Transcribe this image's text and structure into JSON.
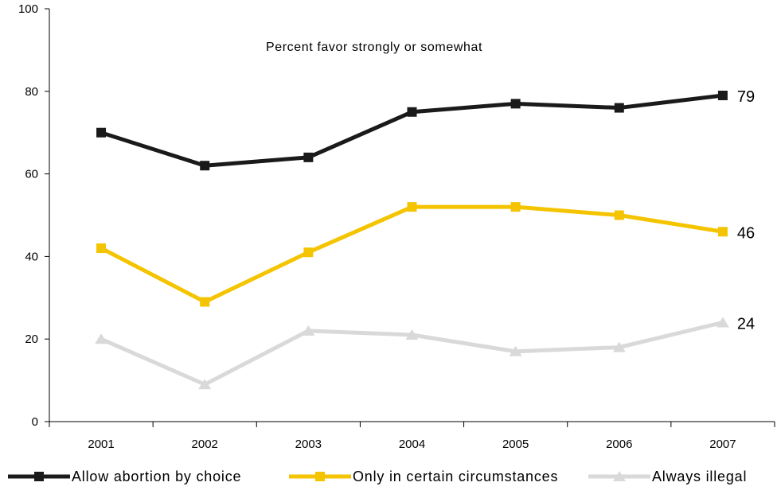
{
  "chart_data": {
    "type": "line",
    "annotation": "Percent favor strongly or somewhat",
    "categories": [
      "2001",
      "2002",
      "2003",
      "2004",
      "2005",
      "2006",
      "2007"
    ],
    "ylim": [
      0,
      100
    ],
    "yticks": [
      "0",
      "20",
      "40",
      "60",
      "80",
      "100"
    ],
    "legend_position": "bottom",
    "series": [
      {
        "name": "Allow abortion by choice",
        "color": "#1a1a1a",
        "marker": "square",
        "values": [
          70,
          62,
          64,
          75,
          77,
          76,
          79
        ],
        "end_label": "79"
      },
      {
        "name": "Only in certain circumstances",
        "color": "#f5c400",
        "marker": "square",
        "values": [
          42,
          29,
          41,
          52,
          52,
          50,
          46
        ],
        "end_label": "46"
      },
      {
        "name": "Always illegal",
        "color": "#d9d9d9",
        "marker": "triangle",
        "values": [
          20,
          9,
          22,
          21,
          17,
          18,
          24
        ],
        "end_label": "24"
      }
    ]
  }
}
